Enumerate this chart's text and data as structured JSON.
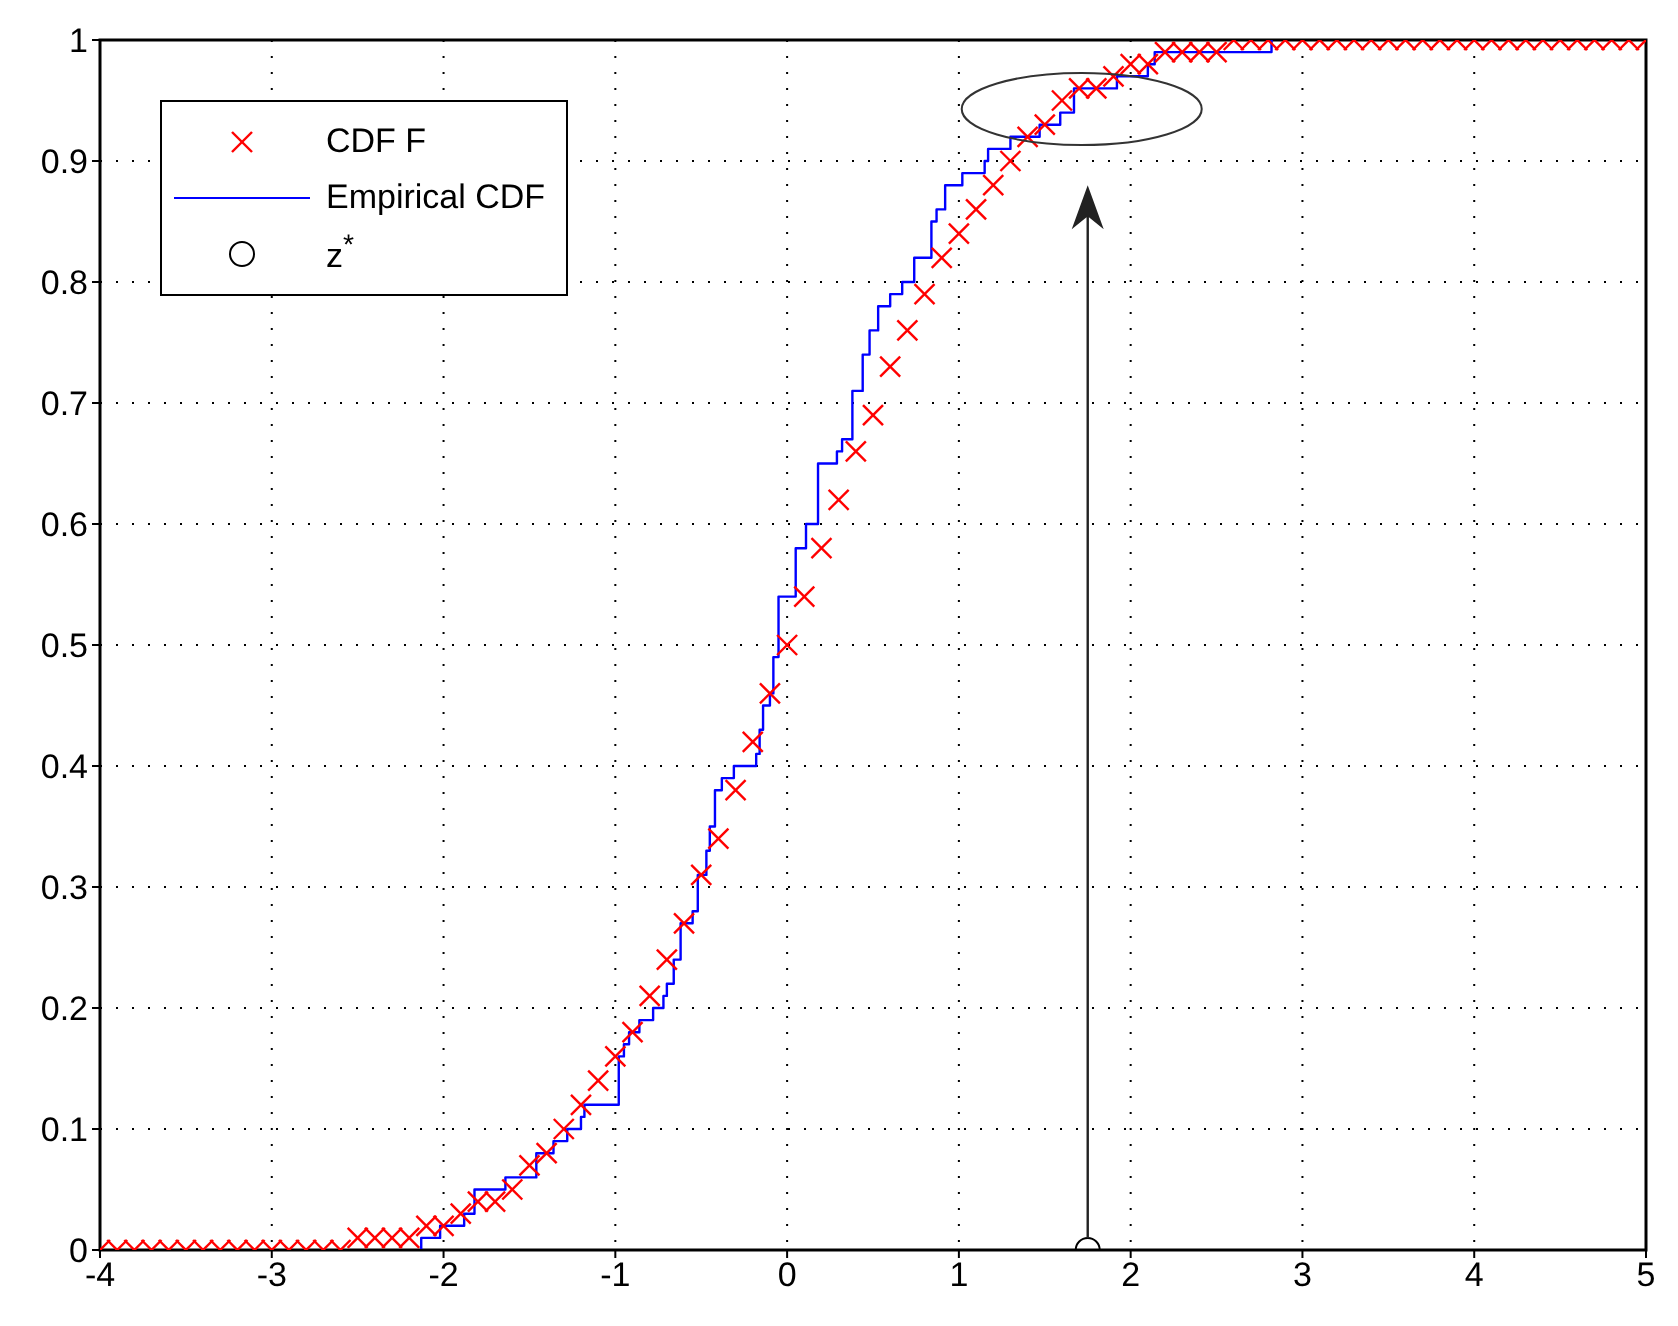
{
  "chart_data": {
    "type": "scatter",
    "xlim": [
      -4,
      5
    ],
    "ylim": [
      0,
      1
    ],
    "xticks": [
      -4,
      -3,
      -2,
      -1,
      0,
      1,
      2,
      3,
      4,
      5
    ],
    "yticks": [
      0,
      0.1,
      0.2,
      0.3,
      0.4,
      0.5,
      0.6,
      0.7,
      0.8,
      0.9,
      1
    ],
    "grid": true,
    "legend": "top left",
    "series": [
      {
        "name": "CDF F",
        "marker": "cross",
        "color": "#ff0000",
        "x": [
          -4,
          -3.9,
          -3.8,
          -3.7,
          -3.6,
          -3.5,
          -3.4,
          -3.3,
          -3.2,
          -3.1,
          -3,
          -2.9,
          -2.8,
          -2.7,
          -2.6,
          -2.5,
          -2.4,
          -2.3,
          -2.2,
          -2.1,
          -2,
          -1.9,
          -1.8,
          -1.7,
          -1.6,
          -1.5,
          -1.4,
          -1.3,
          -1.2,
          -1.1,
          -1,
          -0.9,
          -0.8,
          -0.7,
          -0.6,
          -0.5,
          -0.4,
          -0.3,
          -0.2,
          -0.1,
          0,
          0.1,
          0.2,
          0.3,
          0.4,
          0.5,
          0.6,
          0.7,
          0.8,
          0.9,
          1,
          1.1,
          1.2,
          1.3,
          1.4,
          1.5,
          1.6,
          1.7,
          1.8,
          1.9,
          2,
          2.1,
          2.2,
          2.3,
          2.4,
          2.5,
          2.6,
          2.7,
          2.8,
          2.9,
          3,
          3.1,
          3.2,
          3.3,
          3.4,
          3.5,
          3.6,
          3.7,
          3.8,
          3.9,
          4,
          4.1,
          4.2,
          4.3,
          4.4,
          4.5,
          4.6,
          4.7,
          4.8,
          4.9,
          5
        ],
        "values": [
          0,
          0,
          0,
          0,
          0,
          0,
          0,
          0,
          0,
          0,
          0,
          0,
          0,
          0,
          0,
          0.01,
          0.01,
          0.01,
          0.01,
          0.02,
          0.02,
          0.03,
          0.04,
          0.04,
          0.05,
          0.07,
          0.08,
          0.1,
          0.12,
          0.14,
          0.16,
          0.18,
          0.21,
          0.24,
          0.27,
          0.31,
          0.34,
          0.38,
          0.42,
          0.46,
          0.5,
          0.54,
          0.58,
          0.62,
          0.66,
          0.69,
          0.73,
          0.76,
          0.79,
          0.82,
          0.84,
          0.86,
          0.88,
          0.9,
          0.92,
          0.93,
          0.95,
          0.96,
          0.96,
          0.97,
          0.98,
          0.98,
          0.99,
          0.99,
          0.99,
          0.99,
          1,
          1,
          1,
          1,
          1,
          1,
          1,
          1,
          1,
          1,
          1,
          1,
          1,
          1,
          1,
          1,
          1,
          1,
          1,
          1,
          1,
          1,
          1,
          1,
          1
        ]
      },
      {
        "name": "Empirical CDF",
        "type": "step",
        "line_style": "solid",
        "color": "#0000ff",
        "x": [
          -2.13,
          -2.13,
          -2.02,
          -1.88,
          -1.82,
          -1.64,
          -1.46,
          -1.36,
          -1.28,
          -1.2,
          -1.18,
          -0.98,
          -0.95,
          -0.92,
          -0.86,
          -0.78,
          -0.72,
          -0.7,
          -0.66,
          -0.62,
          -0.55,
          -0.52,
          -0.47,
          -0.45,
          -0.42,
          -0.38,
          -0.31,
          -0.18,
          -0.16,
          -0.14,
          -0.1,
          -0.08,
          -0.05,
          0.05,
          0.11,
          0.18,
          0.29,
          0.32,
          0.38,
          0.44,
          0.48,
          0.53,
          0.6,
          0.67,
          0.74,
          0.84,
          0.87,
          0.92,
          1.02,
          1.15,
          1.17,
          1.3,
          1.47,
          1.59,
          1.67,
          1.92,
          2.1,
          2.14,
          2.82
        ],
        "values": [
          0,
          0.01,
          0.02,
          0.03,
          0.05,
          0.06,
          0.08,
          0.09,
          0.1,
          0.11,
          0.12,
          0.16,
          0.17,
          0.18,
          0.19,
          0.2,
          0.21,
          0.22,
          0.24,
          0.27,
          0.28,
          0.31,
          0.33,
          0.35,
          0.38,
          0.39,
          0.4,
          0.41,
          0.43,
          0.45,
          0.46,
          0.49,
          0.54,
          0.58,
          0.6,
          0.65,
          0.66,
          0.67,
          0.71,
          0.74,
          0.76,
          0.78,
          0.79,
          0.8,
          0.82,
          0.85,
          0.86,
          0.88,
          0.89,
          0.9,
          0.91,
          0.92,
          0.93,
          0.94,
          0.96,
          0.97,
          0.98,
          0.99,
          1
        ]
      },
      {
        "name": "z$^{*}$",
        "marker": "circle",
        "color": "#000000",
        "x": [
          1.75
        ],
        "values": [
          0
        ]
      }
    ]
  }
}
